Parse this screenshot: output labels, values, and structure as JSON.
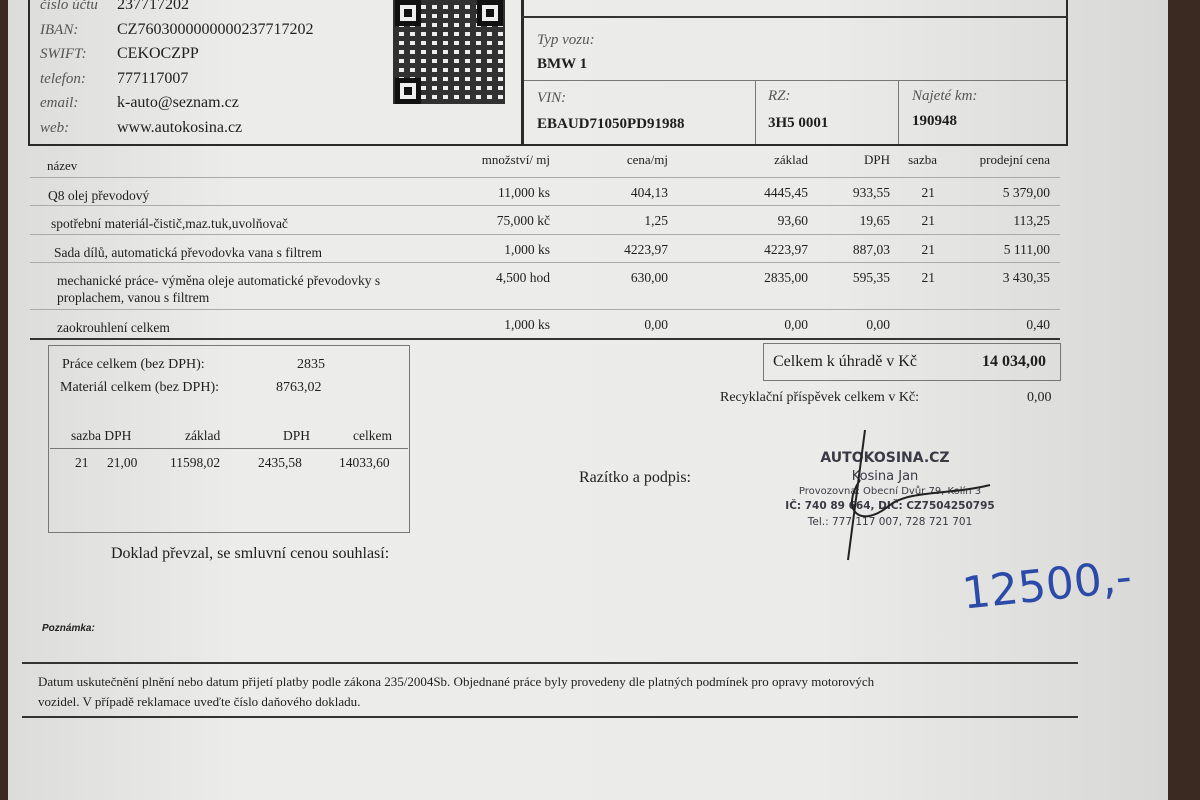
{
  "bank": {
    "rows": [
      {
        "label": "číslo účtu",
        "value": "237717202"
      },
      {
        "label": "IBAN:",
        "value": "CZ7603000000000237717202"
      },
      {
        "label": "SWIFT:",
        "value": "CEKOCZPP"
      },
      {
        "label": "telefon:",
        "value": "777117007"
      },
      {
        "label": "email:",
        "value": "k-auto@seznam.cz"
      },
      {
        "label": "web:",
        "value": "www.autokosina.cz"
      }
    ]
  },
  "vehicle": {
    "type_label": "Typ vozu:",
    "type_value": "BMW 1",
    "vin_label": "VIN:",
    "vin_value": "EBAUD71050PD91988",
    "rz_label": "RZ:",
    "rz_value": "3H5 0001",
    "km_label": "Najeté km:",
    "km_value": "190948"
  },
  "items": {
    "headers": [
      "název",
      "množství/ mj",
      "cena/mj",
      "základ",
      "DPH",
      "sazba",
      "prodejní cena"
    ],
    "rows": [
      {
        "name": "Q8 olej převodový",
        "qty": "11,000 ks",
        "unit": "404,13",
        "base": "4445,45",
        "vat": "933,55",
        "rate": "21",
        "price": "5 379,00"
      },
      {
        "name": "spotřební materiál-čistič,maz.tuk,uvolňovač",
        "qty": "75,000 kč",
        "unit": "1,25",
        "base": "93,60",
        "vat": "19,65",
        "rate": "21",
        "price": "113,25"
      },
      {
        "name": "Sada dílů, automatická převodovka vana s filtrem",
        "qty": "1,000 ks",
        "unit": "4223,97",
        "base": "4223,97",
        "vat": "887,03",
        "rate": "21",
        "price": "5 111,00"
      },
      {
        "name": "mechanické práce- výměna oleje automatické převodovky s",
        "name2": "proplachem, vanou s filtrem",
        "qty": "4,500 hod",
        "unit": "630,00",
        "base": "2835,00",
        "vat": "595,35",
        "rate": "21",
        "price": "3 430,35"
      },
      {
        "name": "zaokrouhlení celkem",
        "qty": "1,000 ks",
        "unit": "0,00",
        "base": "0,00",
        "vat": "0,00",
        "rate": "",
        "price": "0,40"
      }
    ]
  },
  "summary": {
    "work_label": "Práce celkem (bez DPH):",
    "work_value": "2835",
    "material_label": "Materiál celkem (bez DPH):",
    "material_value": "8763,02",
    "vat_headers": [
      "sazba DPH",
      "základ",
      "DPH",
      "celkem"
    ],
    "vat_row": {
      "rate": "21",
      "pct": "21,00",
      "base": "11598,02",
      "vat": "2435,58",
      "total": "14033,60"
    }
  },
  "totals": {
    "due_label": "Celkem k úhradě v Kč",
    "due_value": "14 034,00",
    "recycle_label": "Recyklační příspěvek celkem v Kč:",
    "recycle_value": "0,00"
  },
  "signature": {
    "label": "Razítko a podpis:",
    "stamp": [
      "AUTOKOSINA.CZ",
      "Kosina Jan",
      "Provozovna: Obecní Dvůr 79, Kolín 3",
      "IČ: 740 89 664, DIČ: CZ7504250795",
      "Tel.: 777 117 007, 728 721 701"
    ]
  },
  "accepted_label": "Doklad převzal, se smluvní cenou souhlasí:",
  "note_label": "Poznámka:",
  "handwritten": "12500,-",
  "footer": [
    "Datum uskutečnění plnění nebo datum přijetí platby podle zákona 235/2004Sb. Objednané práce byly provedeny dle platných podmínek pro opravy motorových",
    "vozidel. V případě reklamace uveďte číslo daňového dokladu."
  ]
}
